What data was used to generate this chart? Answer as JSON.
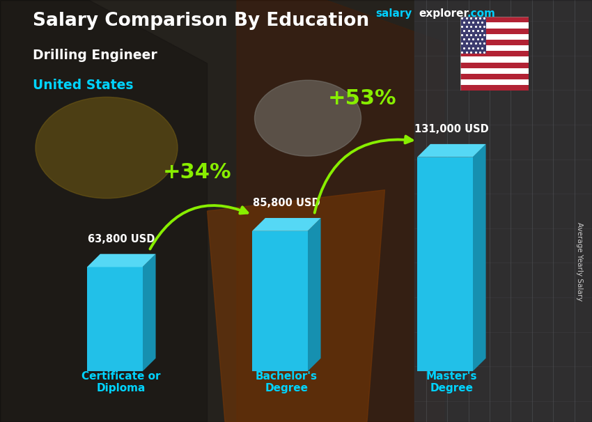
{
  "title_main": "Salary Comparison By Education",
  "subtitle1": "Drilling Engineer",
  "subtitle2": "United States",
  "categories": [
    "Certificate or\nDiploma",
    "Bachelor's\nDegree",
    "Master's\nDegree"
  ],
  "values": [
    63800,
    85800,
    131000
  ],
  "value_labels": [
    "63,800 USD",
    "85,800 USD",
    "131,000 USD"
  ],
  "bar_front_color": "#22c0e8",
  "bar_side_color": "#1690b0",
  "bar_top_color": "#55d8f5",
  "pct_labels": [
    "+34%",
    "+53%"
  ],
  "pct_color": "#88ee00",
  "arrow_color": "#88ee00",
  "title_color": "#ffffff",
  "subtitle1_color": "#ffffff",
  "subtitle2_color": "#00d4ff",
  "value_label_color": "#ffffff",
  "x_label_color": "#00d4ff",
  "side_label": "Average Yearly Salary",
  "side_label_color": "#cccccc",
  "brand_salary_color": "#00cfff",
  "brand_explorer_color": "#ffffff",
  "brand_com_color": "#00cfff",
  "bg_color": "#3a3a3a",
  "ylim": [
    0,
    160000
  ],
  "bar_width": 0.42,
  "x_positions": [
    0.9,
    2.15,
    3.4
  ],
  "xlim": [
    0.3,
    4.2
  ]
}
